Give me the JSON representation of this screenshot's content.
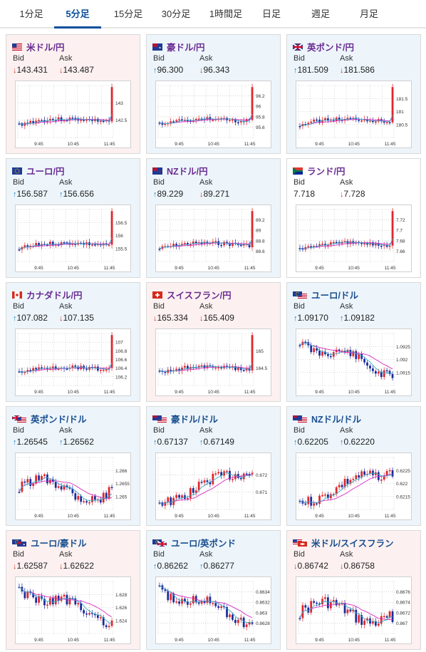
{
  "tabs": [
    {
      "label": "1分足",
      "active": false
    },
    {
      "label": "5分足",
      "active": true
    },
    {
      "label": "15分足",
      "active": false
    },
    {
      "label": "30分足",
      "active": false
    },
    {
      "label": "1時間足",
      "active": false
    },
    {
      "label": "日足",
      "active": false
    },
    {
      "label": "週足",
      "active": false
    },
    {
      "label": "月足",
      "active": false
    }
  ],
  "common": {
    "bid_label": "Bid",
    "ask_label": "Ask",
    "x_ticks": [
      "9:45",
      "10:45",
      "11:45"
    ]
  },
  "colors": {
    "up": "#1f7fc4",
    "down": "#d93025",
    "candle_up": "#e0262b",
    "candle_down": "#1a2b9c",
    "ma_pink": "#d629c2",
    "ma_blue": "#3aa8c8",
    "grid": "#bbbbbb"
  },
  "cards": [
    {
      "pair": "米ドル/円",
      "name_color": "purple",
      "bg": "pink",
      "flag": "us",
      "bid": "143.431",
      "bid_dir": "down",
      "ask": "143.487",
      "ask_dir": "down",
      "y_ticks": [
        "143",
        "142.5"
      ],
      "shape": "spike"
    },
    {
      "pair": "豪ドル/円",
      "name_color": "purple",
      "bg": "blue",
      "flag": "au",
      "bid": "96.300",
      "bid_dir": "up",
      "ask": "96.343",
      "ask_dir": "down",
      "y_ticks": [
        "96.2",
        "96",
        "95.8",
        "95.6"
      ],
      "shape": "spike"
    },
    {
      "pair": "英ポンド/円",
      "name_color": "purple",
      "bg": "blue",
      "flag": "gb",
      "bid": "181.509",
      "bid_dir": "up",
      "ask": "181.586",
      "ask_dir": "down",
      "y_ticks": [
        "181.5",
        "181",
        "180.5"
      ],
      "shape": "spike"
    },
    {
      "pair": "ユーロ/円",
      "name_color": "purple",
      "bg": "blue",
      "flag": "eu",
      "bid": "156.587",
      "bid_dir": "up",
      "ask": "156.656",
      "ask_dir": "up",
      "y_ticks": [
        "156.5",
        "156",
        "155.5"
      ],
      "shape": "spike"
    },
    {
      "pair": "NZドル/円",
      "name_color": "purple",
      "bg": "blue",
      "flag": "nz",
      "bid": "89.229",
      "bid_dir": "up",
      "ask": "89.271",
      "ask_dir": "down",
      "y_ticks": [
        "89.2",
        "89",
        "88.8",
        "88.6"
      ],
      "shape": "spike"
    },
    {
      "pair": "ランド/円",
      "name_color": "purple",
      "bg": "white",
      "flag": "za",
      "bid": "7.718",
      "bid_dir": "none",
      "ask": "7.728",
      "ask_dir": "down",
      "y_ticks": [
        "7.72",
        "7.7",
        "7.68",
        "7.66"
      ],
      "shape": "spike"
    },
    {
      "pair": "カナダドル/円",
      "name_color": "purple",
      "bg": "blue",
      "flag": "ca",
      "bid": "107.082",
      "bid_dir": "up",
      "ask": "107.135",
      "ask_dir": "down",
      "y_ticks": [
        "107",
        "106.8",
        "106.6",
        "106.4",
        "106.2"
      ],
      "shape": "spike"
    },
    {
      "pair": "スイスフラン/円",
      "name_color": "purple",
      "bg": "pink",
      "flag": "ch",
      "bid": "165.334",
      "bid_dir": "down",
      "ask": "165.409",
      "ask_dir": "down",
      "y_ticks": [
        "165",
        "164.5"
      ],
      "shape": "spike"
    },
    {
      "pair": "ユーロ/ドル",
      "name_color": "navy",
      "bg": "blue",
      "flag": "eu-us",
      "bid": "1.09170",
      "bid_dir": "up",
      "ask": "1.09182",
      "ask_dir": "up",
      "y_ticks": [
        "1.0925",
        "1.092",
        "1.0915"
      ],
      "shape": "fall"
    },
    {
      "pair": "英ポンド/ドル",
      "name_color": "navy",
      "bg": "blue",
      "flag": "gb-us",
      "bid": "1.26545",
      "bid_dir": "up",
      "ask": "1.26562",
      "ask_dir": "up",
      "y_ticks": [
        "1.266",
        "1.2655",
        "1.265"
      ],
      "shape": "wave"
    },
    {
      "pair": "豪ドル/ドル",
      "name_color": "navy",
      "bg": "blue",
      "flag": "au-us",
      "bid": "0.67137",
      "bid_dir": "up",
      "ask": "0.67149",
      "ask_dir": "up",
      "y_ticks": [
        "0.672",
        "0.671"
      ],
      "shape": "rise"
    },
    {
      "pair": "NZドル/ドル",
      "name_color": "navy",
      "bg": "blue",
      "flag": "nz-us",
      "bid": "0.62205",
      "bid_dir": "up",
      "ask": "0.62220",
      "ask_dir": "up",
      "y_ticks": [
        "0.6225",
        "0.622",
        "0.6215"
      ],
      "shape": "rise"
    },
    {
      "pair": "ユーロ/豪ドル",
      "name_color": "navy",
      "bg": "pink",
      "flag": "eu-au",
      "bid": "1.62587",
      "bid_dir": "down",
      "ask": "1.62622",
      "ask_dir": "down",
      "y_ticks": [
        "1.628",
        "1.626",
        "1.624"
      ],
      "shape": "fall"
    },
    {
      "pair": "ユーロ/英ポンド",
      "name_color": "navy",
      "bg": "blue",
      "flag": "eu-gb",
      "bid": "0.86262",
      "bid_dir": "up",
      "ask": "0.86277",
      "ask_dir": "up",
      "y_ticks": [
        "0.8634",
        "0.8632",
        "0.863",
        "0.8628"
      ],
      "shape": "fall"
    },
    {
      "pair": "米ドル/スイスフラン",
      "name_color": "navy",
      "bg": "pink",
      "flag": "us-ch",
      "bid": "0.86742",
      "bid_dir": "down",
      "ask": "0.86758",
      "ask_dir": "down",
      "y_ticks": [
        "0.8676",
        "0.8674",
        "0.8672",
        "0.867"
      ],
      "shape": "wave"
    }
  ]
}
